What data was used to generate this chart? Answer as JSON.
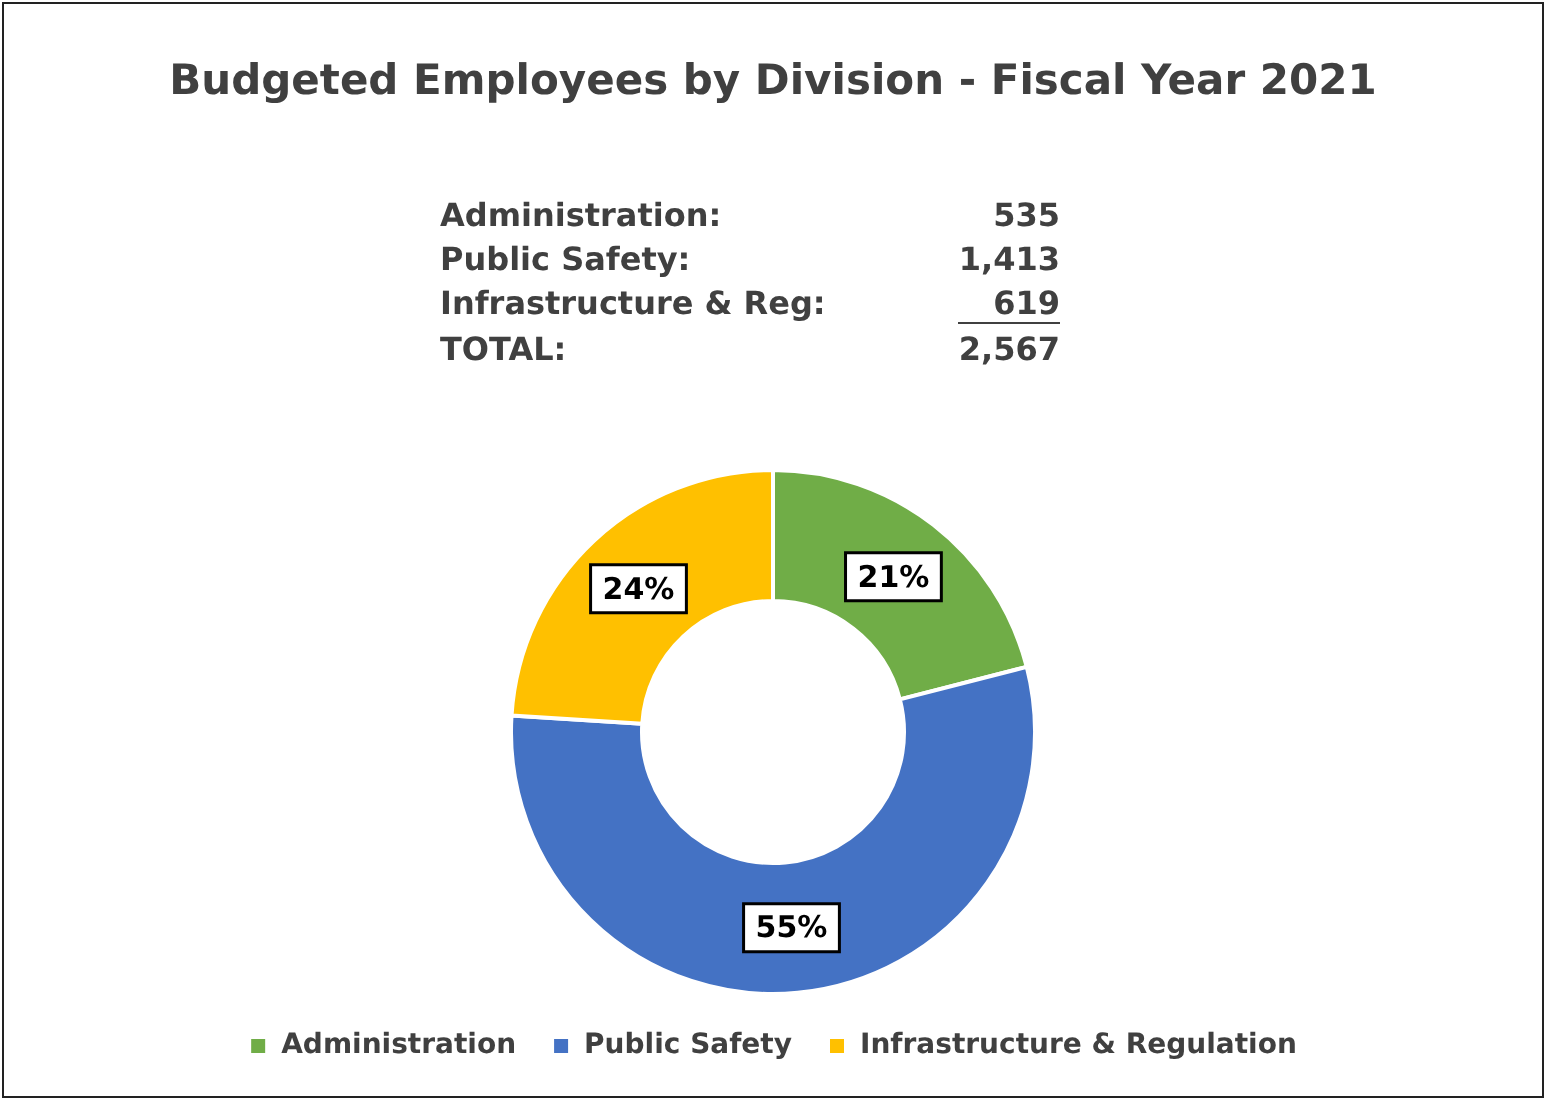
{
  "chart_data": {
    "type": "donut",
    "title": "Budgeted Employees by Division - Fiscal Year 2021",
    "categories": [
      "Administration",
      "Public Safety",
      "Infrastructure & Regulation"
    ],
    "values": [
      21,
      55,
      24
    ],
    "colors": [
      "#70ad47",
      "#4472c4",
      "#ffc000"
    ],
    "value_labels": [
      "21%",
      "55%",
      "24%"
    ],
    "annotations": [
      "Administration:",
      "535",
      "Public Safety:",
      "1,413",
      "Infrastructure & Reg:",
      "619",
      "TOTAL:",
      "2,567"
    ],
    "legend": "bottom"
  }
}
